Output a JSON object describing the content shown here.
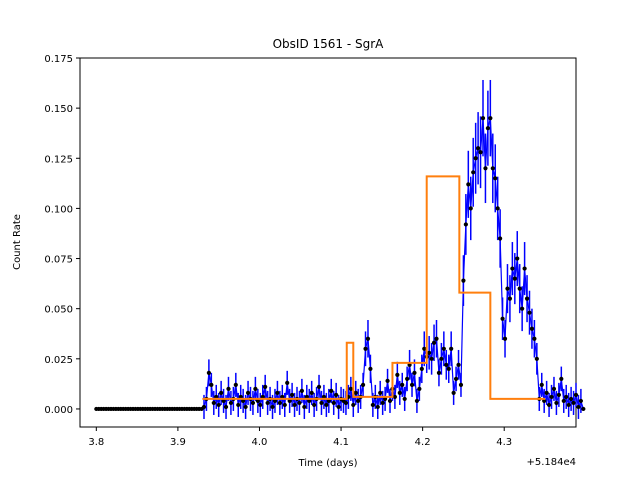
{
  "chart_data": {
    "type": "scatter",
    "title": "ObsID 1561 - SgrA",
    "xlabel": "Time (days)",
    "ylabel": "Count Rate",
    "x_offset_label": "+5.184e4",
    "xlim": [
      3.78,
      4.388
    ],
    "ylim": [
      -0.009,
      0.175
    ],
    "x_ticks": [
      3.8,
      3.9,
      4.0,
      4.1,
      4.2,
      4.3
    ],
    "x_tick_labels": [
      "3.8",
      "3.9",
      "4.0",
      "4.1",
      "4.2",
      "4.3"
    ],
    "y_ticks": [
      0.0,
      0.025,
      0.05,
      0.075,
      0.1,
      0.125,
      0.15,
      0.175
    ],
    "y_tick_labels": [
      "0.000",
      "0.025",
      "0.050",
      "0.075",
      "0.100",
      "0.125",
      "0.150",
      "0.175"
    ],
    "grid": false,
    "colors": {
      "points": "#000000",
      "errorbars": "#0000ff",
      "blocks": "#ff7f0e"
    },
    "series": [
      {
        "name": "",
        "kind": "points",
        "x_start": 3.8,
        "x_step": 0.003,
        "values": [
          0,
          0,
          0,
          0,
          0,
          0,
          0,
          0,
          0,
          0,
          0,
          0,
          0,
          0,
          0,
          0,
          0,
          0,
          0,
          0,
          0,
          0,
          0,
          0,
          0,
          0,
          0,
          0,
          0,
          0,
          0,
          0,
          0,
          0,
          0,
          0,
          0,
          0,
          0,
          0,
          0,
          0,
          0,
          0,
          0.001,
          0.005,
          0.018,
          0.012,
          0.003,
          0.006,
          0.002,
          0.008,
          0.004,
          0.001,
          0.01,
          0.003,
          0.005,
          0.012,
          0.002,
          0.006,
          0.004,
          0.001,
          0.008,
          0.005,
          0.003,
          0.01,
          0.004,
          0.002,
          0.006,
          0.011,
          0.003,
          0.005,
          0.001,
          0.004,
          0.008,
          0.003,
          0.006,
          0.002,
          0.013,
          0.004,
          0.007,
          0.002,
          0.005,
          0.003,
          0.009,
          0.001,
          0.006,
          0.004,
          0.008,
          0.002,
          0.005,
          0.011,
          0.003,
          0.006,
          0.002,
          0.004,
          0.009,
          0.003,
          0.007,
          0.001,
          0.005,
          0.004,
          0.003,
          0.006,
          0.01,
          0.002,
          0.008,
          0.004,
          0.006,
          0.012,
          0.03,
          0.035,
          0.02,
          0.002,
          0.006,
          0.001,
          0.008,
          0.003,
          0.005,
          0.014,
          0.004,
          0.01,
          0.006,
          0.017,
          0.008,
          0.012,
          0.005,
          0.015,
          0.022,
          0.012,
          0.018,
          0.004,
          0.01,
          0.02,
          0.03,
          0.026,
          0.028,
          0.025,
          0.033,
          0.035,
          0.018,
          0.025,
          0.03,
          0.022,
          0.02,
          0.03,
          0.008,
          0.015,
          0.022,
          0.012,
          0.064,
          0.092,
          0.112,
          0.1,
          0.118,
          0.125,
          0.13,
          0.128,
          0.145,
          0.12,
          0.14,
          0.145,
          0.12,
          0.115,
          0.1,
          0.085,
          0.045,
          0.035,
          0.06,
          0.055,
          0.07,
          0.065,
          0.075,
          0.06,
          0.05,
          0.07,
          0.055,
          0.048,
          0.04,
          0.035,
          0.025,
          0.005,
          0.012,
          0.004,
          0.008,
          0.002,
          0.006,
          0.01,
          0.003,
          0.007,
          0.015,
          0.004,
          0.006,
          0.002,
          0.005,
          0.003,
          0.007,
          0.001,
          0.004,
          0.0
        ]
      },
      {
        "name": "",
        "kind": "blocks",
        "x": [
          3.93,
          4.107,
          4.107,
          4.115,
          4.115,
          4.163,
          4.163,
          4.205,
          4.205,
          4.245,
          4.245,
          4.283,
          4.283,
          4.35
        ],
        "y": [
          0.005,
          0.005,
          0.033,
          0.033,
          0.006,
          0.006,
          0.023,
          0.023,
          0.116,
          0.116,
          0.058,
          0.058,
          0.005,
          0.005
        ]
      }
    ]
  }
}
